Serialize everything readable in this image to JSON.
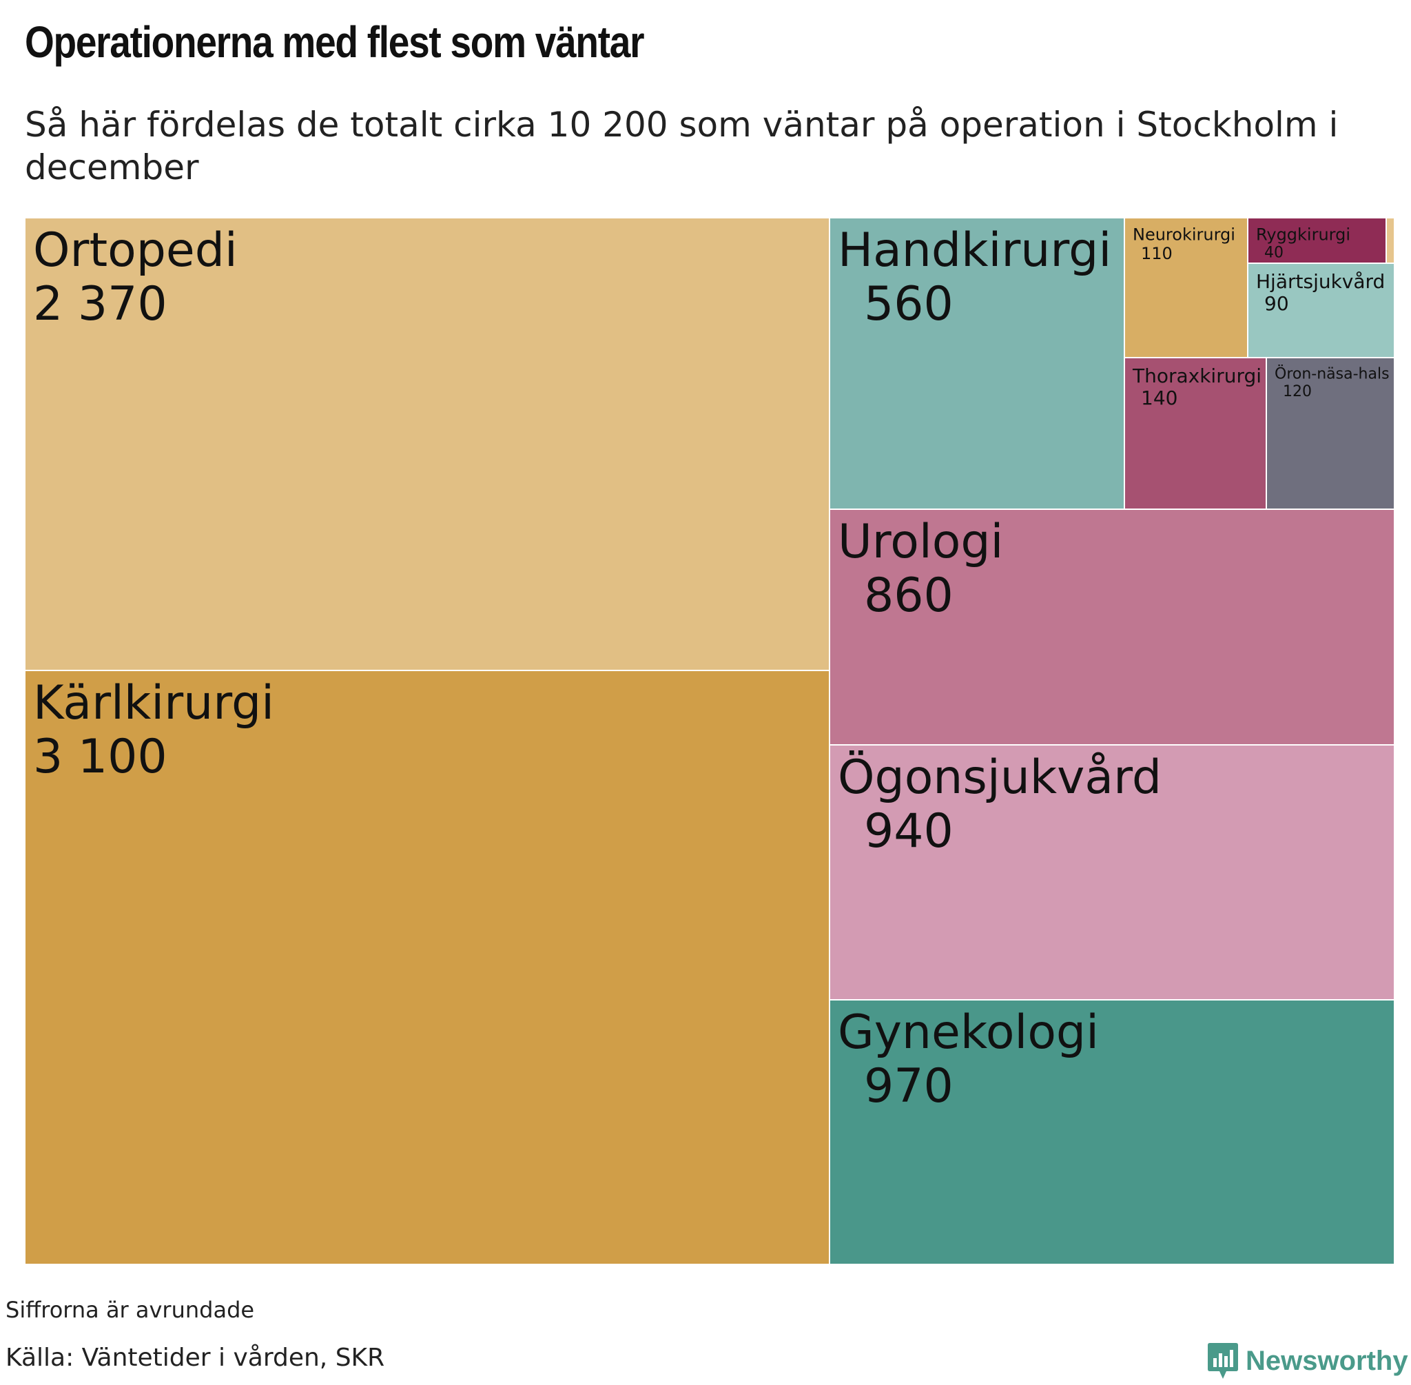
{
  "title": "Operationerna med flest som väntar",
  "subtitle": "Så här fördelas de totalt cirka 10 200 som väntar på operation i Stockholm i december",
  "note": "Siffrorna är avrundade",
  "source": "Källa: Väntetider i vården, SKR",
  "brand": "Newsworthy",
  "chart_data": {
    "type": "treemap",
    "items": [
      {
        "label": "Ortopedi",
        "value_label": "2 370",
        "value": 2370,
        "color": "#e1bf84"
      },
      {
        "label": "Kärlkirurgi",
        "value_label": "3 100",
        "value": 3100,
        "color": "#d09e48"
      },
      {
        "label": "Handkirurgi",
        "value_label": "560",
        "value": 560,
        "color": "#7fb5af"
      },
      {
        "label": "Neurokirurgi",
        "value_label": "110",
        "value": 110,
        "color": "#d8ae64"
      },
      {
        "label": "Ryggkirurgi",
        "value_label": "40",
        "value": 40,
        "color": "#8f2c55"
      },
      {
        "label": "Hjärtsjukvård",
        "value_label": "90",
        "value": 90,
        "color": "#99c7c1"
      },
      {
        "label": "Thoraxkirurgi",
        "value_label": "140",
        "value": 140,
        "color": "#a65171"
      },
      {
        "label": "Öron-näsa-hals",
        "value_label": "120",
        "value": 120,
        "color": "#6f6f7e"
      },
      {
        "label": "Urologi",
        "value_label": "860",
        "value": 860,
        "color": "#bf7791"
      },
      {
        "label": "Ögonsjukvård",
        "value_label": "940",
        "value": 940,
        "color": "#d39bb3"
      },
      {
        "label": "Gynekologi",
        "value_label": "970",
        "value": 970,
        "color": "#4a978a"
      },
      {
        "label": "",
        "value_label": "",
        "value": 0,
        "color": "#e6c58d"
      }
    ]
  }
}
